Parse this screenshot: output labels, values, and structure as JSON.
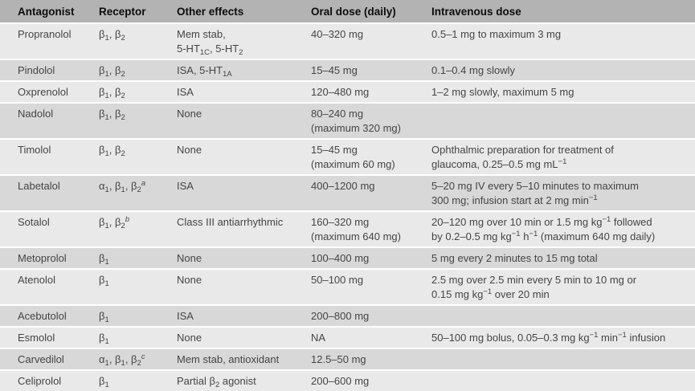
{
  "table": {
    "colors": {
      "header_bg": "#b3b3b3",
      "row_light": "#e9e9e9",
      "row_dark": "#d8d8d8",
      "header_text": "#0d0d0d",
      "body_text": "#454545"
    },
    "columns": [
      "Antagonist",
      "Receptor",
      "Other effects",
      "Oral dose (daily)",
      "Intravenous dose"
    ],
    "rows": [
      {
        "antagonist": "Propranolol",
        "receptor": "β~1~, β~2~",
        "effects": "Mem stab,\n5-HT~1C~, 5-HT~2~",
        "oral": "40–320 mg",
        "iv": "0.5–1 mg to maximum 3 mg"
      },
      {
        "antagonist": "Pindolol",
        "receptor": "β~1~, β~2~",
        "effects": "ISA, 5-HT~1A~",
        "oral": "15–45 mg",
        "iv": "0.1–0.4 mg slowly"
      },
      {
        "antagonist": "Oxprenolol",
        "receptor": "β~1~, β~2~",
        "effects": "ISA",
        "oral": "120–480 mg",
        "iv": "1–2 mg slowly, maximum 5 mg"
      },
      {
        "antagonist": "Nadolol",
        "receptor": "β~1~, β~2~",
        "effects": "None",
        "oral": "80–240 mg\n(maximum 320 mg)",
        "iv": ""
      },
      {
        "antagonist": "Timolol",
        "receptor": "β~1~, β~2~",
        "effects": "None",
        "oral": "15–45 mg\n(maximum 60 mg)",
        "iv": "Ophthalmic preparation for treatment of\nglaucoma, 0.25–0.5 mg mL^−1^"
      },
      {
        "antagonist": "Labetalol",
        "receptor": "α~1~, β~1~, β~2~^*a*^",
        "effects": "ISA",
        "oral": "400–1200 mg",
        "iv": "5–20 mg IV every 5–10 minutes to maximum\n300 mg; infusion start at 2 mg min^−1^"
      },
      {
        "antagonist": "Sotalol",
        "receptor": "β~1~, β~2~^*b*^",
        "effects": "Class III antiarrhythmic",
        "oral": "160–320 mg\n(maximum 640 mg)",
        "iv": "20–120 mg over 10 min or 1.5 mg kg^−1^ followed\nby 0.2–0.5 mg kg^−1^ h^−1^ (maximum 640 mg daily)"
      },
      {
        "antagonist": "Metoprolol",
        "receptor": "β~1~",
        "effects": "None",
        "oral": "100–400 mg",
        "iv": "5 mg every 2 minutes to 15 mg total"
      },
      {
        "antagonist": "Atenolol",
        "receptor": "β~1~",
        "effects": "None",
        "oral": "50–100 mg",
        "iv": "2.5 mg over 2.5 min every 5 min to 10 mg or\n0.15 mg kg^−1^ over 20 min"
      },
      {
        "antagonist": "Acebutolol",
        "receptor": "β~1~",
        "effects": "ISA",
        "oral": "200–800 mg",
        "iv": ""
      },
      {
        "antagonist": "Esmolol",
        "receptor": "β~1~",
        "effects": "None",
        "oral": "NA",
        "iv": "50–100 mg bolus, 0.05–0.3 mg kg^−1^ min^−1^ infusion"
      },
      {
        "antagonist": "Carvedilol",
        "receptor": "α~1~, β~1~, β~2~^*c*^",
        "effects": "Mem stab, antioxidant",
        "oral": "12.5–50 mg",
        "iv": ""
      },
      {
        "antagonist": "Celiprolol",
        "receptor": "β~1~",
        "effects": "Partial β~2~ agonist",
        "oral": "200–600 mg",
        "iv": ""
      }
    ]
  }
}
